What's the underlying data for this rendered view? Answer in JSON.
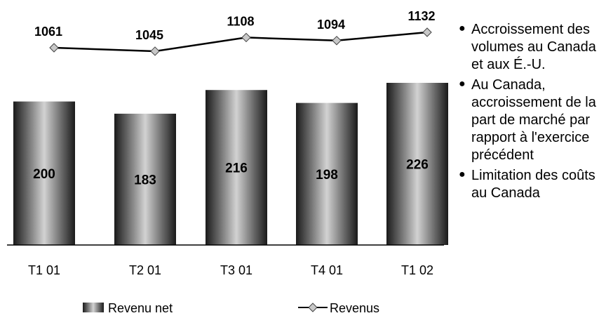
{
  "chart_data": {
    "type": "bar+line",
    "categories": [
      "T1 01",
      "T2 01",
      "T3 01",
      "T4 01",
      "T1 02"
    ],
    "series": [
      {
        "name": "Revenu net",
        "type": "bar",
        "values": [
          200,
          183,
          216,
          198,
          226
        ]
      },
      {
        "name": "Revenus",
        "type": "line",
        "values": [
          1061,
          1045,
          1108,
          1094,
          1132
        ]
      }
    ],
    "legend_placement": "bottom",
    "grid": false,
    "colors": {
      "bar_dark": "#1e1e1e",
      "bar_light": "#cfcfcf",
      "line": "#000000",
      "marker": "#c8c8c8"
    }
  },
  "bullets": [
    "Accroissement des volumes au Canada et aux É.-U.",
    "Au Canada, accroissement de la part de marché par rapport à l'exercice précédent",
    "Limitation des coûts au Canada"
  ],
  "bullet_icon": "bullet-dot"
}
